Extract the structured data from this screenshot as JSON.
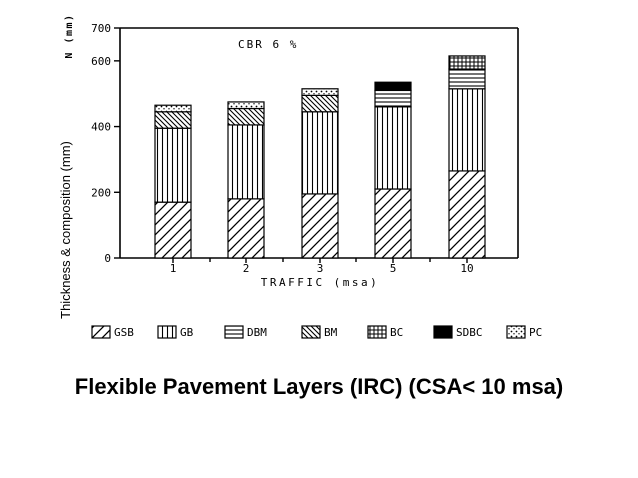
{
  "caption": "Flexible Pavement Layers (IRC) (CSA< 10 msa)",
  "chart_data": {
    "type": "bar",
    "stacked": true,
    "title": "",
    "annotation": "CBR 6 %",
    "xlabel": "TRAFFIC (msa)",
    "ylabel": "Thickness & composition (mm)",
    "y_unit_label": "N (mm)",
    "ylim": [
      0,
      700
    ],
    "yticks": [
      0,
      200,
      400,
      600,
      700
    ],
    "categories": [
      "1",
      "2",
      "3",
      "5",
      "10"
    ],
    "series": [
      {
        "name": "GSB",
        "pattern": "diag-hatch",
        "values": [
          170,
          180,
          195,
          210,
          265
        ]
      },
      {
        "name": "GB",
        "pattern": "vertical",
        "values": [
          225,
          225,
          250,
          250,
          250
        ]
      },
      {
        "name": "DBM",
        "pattern": "horizontal",
        "values": [
          0,
          0,
          0,
          50,
          60
        ]
      },
      {
        "name": "BM",
        "pattern": "back-diag",
        "values": [
          50,
          50,
          50,
          0,
          0
        ]
      },
      {
        "name": "BC",
        "pattern": "grid",
        "values": [
          0,
          0,
          0,
          0,
          40
        ]
      },
      {
        "name": "SDBC",
        "pattern": "solid",
        "values": [
          0,
          0,
          0,
          25,
          0
        ]
      },
      {
        "name": "PC",
        "pattern": "dots",
        "values": [
          20,
          20,
          20,
          0,
          0
        ]
      }
    ],
    "grid": false,
    "legend_position": "bottom"
  }
}
